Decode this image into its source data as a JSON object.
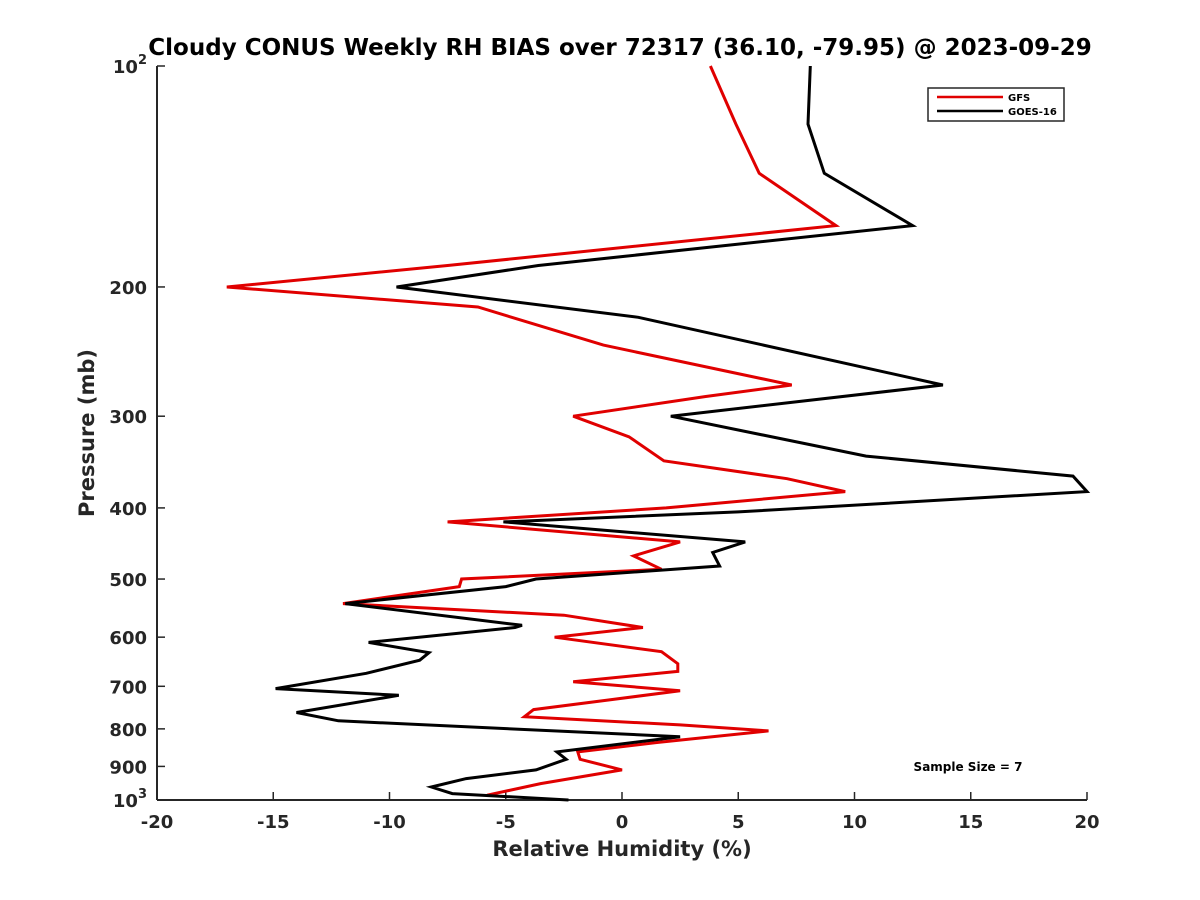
{
  "chart_data": {
    "type": "line",
    "title": "Cloudy CONUS Weekly RH BIAS over 72317 (36.10, -79.95) @ 2023-09-29",
    "xlabel": "Relative Humidity (%)",
    "ylabel": "Pressure (mb)",
    "xlim": [
      -20,
      20
    ],
    "ylim": [
      100,
      1000
    ],
    "y_scale": "log",
    "y_reversed": true,
    "grid": false,
    "legend_position": "top-right",
    "annotation": "Sample Size = 7",
    "x_ticks": [
      "-20",
      "-15",
      "-10",
      "-5",
      "0",
      "5",
      "10",
      "15",
      "20"
    ],
    "y_ticks": [
      {
        "value": 100,
        "base": "10",
        "exp": "2"
      },
      {
        "value": 200,
        "label": "200"
      },
      {
        "value": 300,
        "label": "300"
      },
      {
        "value": 400,
        "label": "400"
      },
      {
        "value": 500,
        "label": "500"
      },
      {
        "value": 600,
        "label": "600"
      },
      {
        "value": 700,
        "label": "700"
      },
      {
        "value": 800,
        "label": "800"
      },
      {
        "value": 900,
        "label": "900"
      },
      {
        "value": 1000,
        "base": "10",
        "exp": "3"
      }
    ],
    "series": [
      {
        "name": "GFS",
        "color": "#e00000",
        "points": [
          [
            3.8,
            100
          ],
          [
            4.9,
            120
          ],
          [
            5.9,
            140
          ],
          [
            9.2,
            165
          ],
          [
            -7.5,
            187
          ],
          [
            -17,
            200
          ],
          [
            -6.2,
            213
          ],
          [
            -0.8,
            240
          ],
          [
            7.3,
            272
          ],
          [
            3.6,
            282
          ],
          [
            -2.1,
            300
          ],
          [
            0.3,
            320
          ],
          [
            1.8,
            345
          ],
          [
            7.1,
            365
          ],
          [
            9.6,
            380
          ],
          [
            1.9,
            400
          ],
          [
            -7.5,
            418
          ],
          [
            2.5,
            445
          ],
          [
            0.5,
            465
          ],
          [
            1.7,
            485
          ],
          [
            -6.9,
            500
          ],
          [
            -7,
            512
          ],
          [
            -12,
            540
          ],
          [
            -2.5,
            560
          ],
          [
            0.9,
            582
          ],
          [
            -2.9,
            600
          ],
          [
            1.7,
            628
          ],
          [
            2.4,
            652
          ],
          [
            2.4,
            668
          ],
          [
            -2.1,
            690
          ],
          [
            2.5,
            710
          ],
          [
            -0.5,
            730
          ],
          [
            -3.8,
            753
          ],
          [
            -4.2,
            770
          ],
          [
            2.5,
            790
          ],
          [
            6.3,
            805
          ],
          [
            1.5,
            835
          ],
          [
            -1.9,
            860
          ],
          [
            -1.8,
            880
          ],
          [
            0,
            910
          ],
          [
            -3.5,
            950
          ],
          [
            -5.8,
            985
          ]
        ]
      },
      {
        "name": "GOES-16",
        "color": "#000000",
        "points": [
          [
            8.1,
            100
          ],
          [
            8,
            120
          ],
          [
            8.7,
            140
          ],
          [
            12.5,
            165
          ],
          [
            -3.6,
            187
          ],
          [
            -9.7,
            200
          ],
          [
            0.7,
            220
          ],
          [
            13.8,
            272
          ],
          [
            2.1,
            300
          ],
          [
            10.5,
            340
          ],
          [
            19.4,
            362
          ],
          [
            20,
            380
          ],
          [
            5,
            405
          ],
          [
            -5.1,
            418
          ],
          [
            5.3,
            445
          ],
          [
            3.9,
            460
          ],
          [
            4.2,
            480
          ],
          [
            -3.7,
            500
          ],
          [
            -5,
            512
          ],
          [
            -11.9,
            540
          ],
          [
            -4.3,
            578
          ],
          [
            -4.6,
            582
          ],
          [
            -10.9,
            610
          ],
          [
            -8.3,
            630
          ],
          [
            -8.7,
            645
          ],
          [
            -11,
            672
          ],
          [
            -14.9,
            705
          ],
          [
            -9.6,
            720
          ],
          [
            -14,
            760
          ],
          [
            -12.2,
            780
          ],
          [
            2.5,
            820
          ],
          [
            -2.8,
            860
          ],
          [
            -2.4,
            880
          ],
          [
            -3.7,
            910
          ],
          [
            -6.7,
            935
          ],
          [
            -8.2,
            960
          ],
          [
            -7.3,
            980
          ],
          [
            -2.3,
            1000
          ]
        ]
      }
    ]
  }
}
